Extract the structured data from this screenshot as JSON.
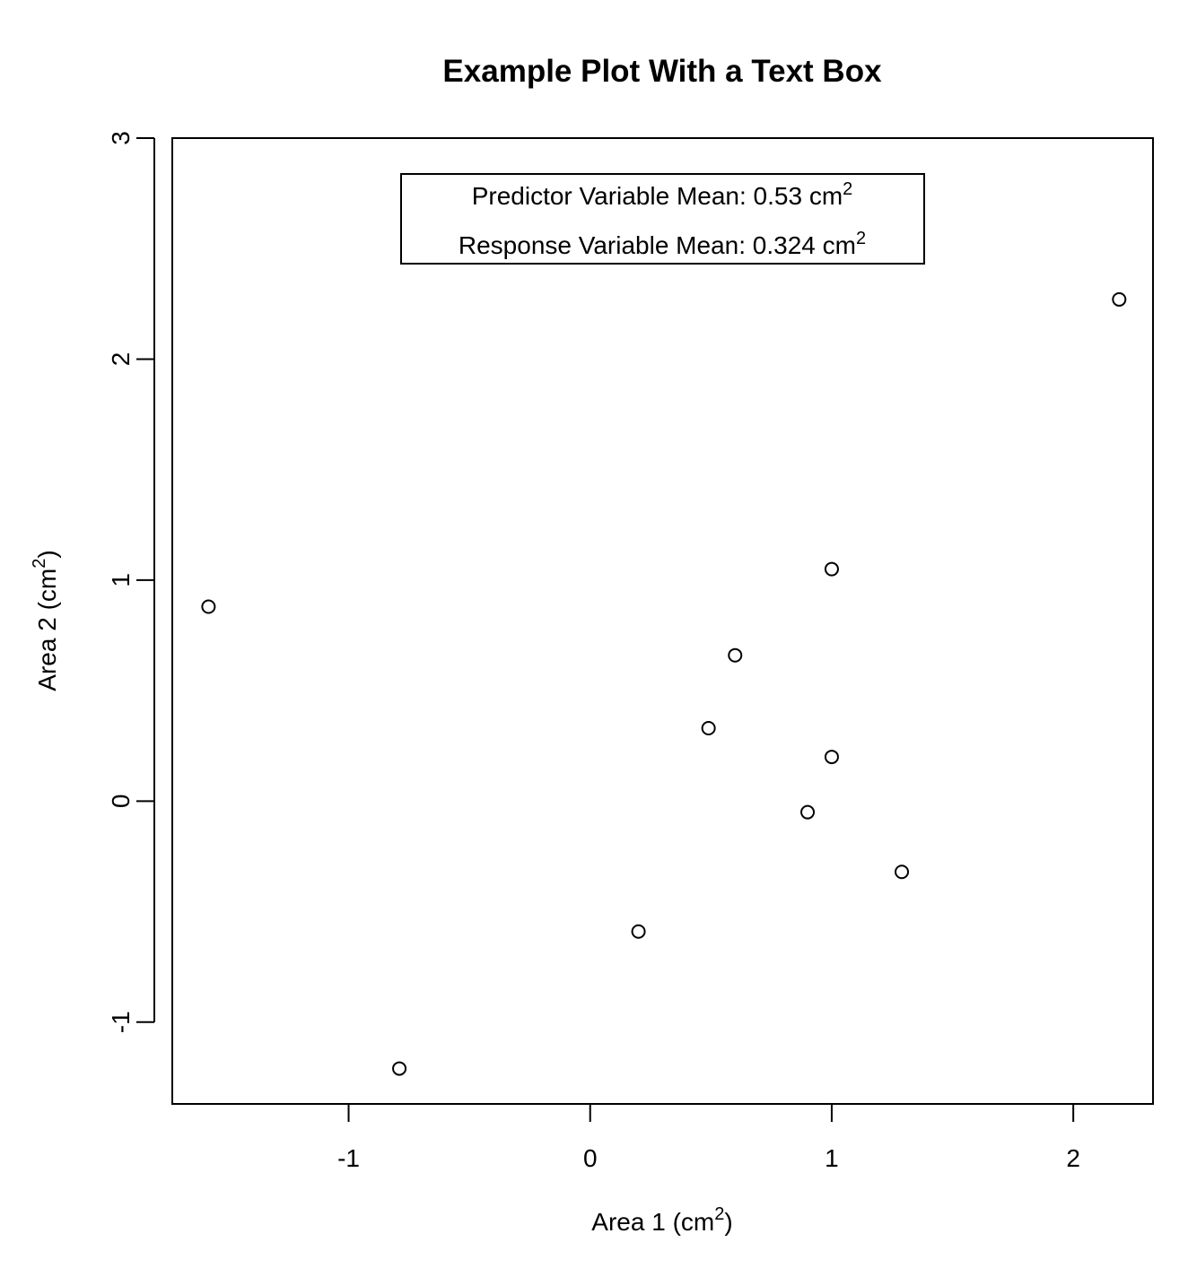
{
  "chart_data": {
    "type": "scatter",
    "title": "Example Plot With a Text Box",
    "xlabel": {
      "text": "Area 1 (cm",
      "sup": "2",
      "close": ")"
    },
    "ylabel": {
      "text": "Area 2 (cm",
      "sup": "2",
      "close": ")"
    },
    "xlim": [
      -1.73,
      2.33
    ],
    "ylim": [
      -1.37,
      3.0
    ],
    "x_ticks": [
      -1,
      0,
      1,
      2
    ],
    "y_ticks": [
      -1,
      0,
      1,
      2,
      3
    ],
    "grid": false,
    "legend": "none",
    "marker": "open-circle",
    "colors": {
      "points": "#000000",
      "background": "#ffffff",
      "box": "#000000"
    },
    "points": [
      {
        "x": -1.58,
        "y": 0.88
      },
      {
        "x": -0.79,
        "y": -1.21
      },
      {
        "x": 0.2,
        "y": -0.59
      },
      {
        "x": 0.49,
        "y": 0.33
      },
      {
        "x": 0.6,
        "y": 0.66
      },
      {
        "x": 0.9,
        "y": -0.05
      },
      {
        "x": 1.0,
        "y": 1.05
      },
      {
        "x": 1.0,
        "y": 0.2
      },
      {
        "x": 1.29,
        "y": -0.32
      },
      {
        "x": 2.19,
        "y": 2.27
      }
    ],
    "annotation_box": {
      "placement": "top-center",
      "lines": [
        {
          "text": "Predictor Variable Mean: 0.53 cm",
          "sup": "2"
        },
        {
          "text": "Response Variable Mean: 0.324 cm",
          "sup": "2"
        }
      ]
    }
  }
}
